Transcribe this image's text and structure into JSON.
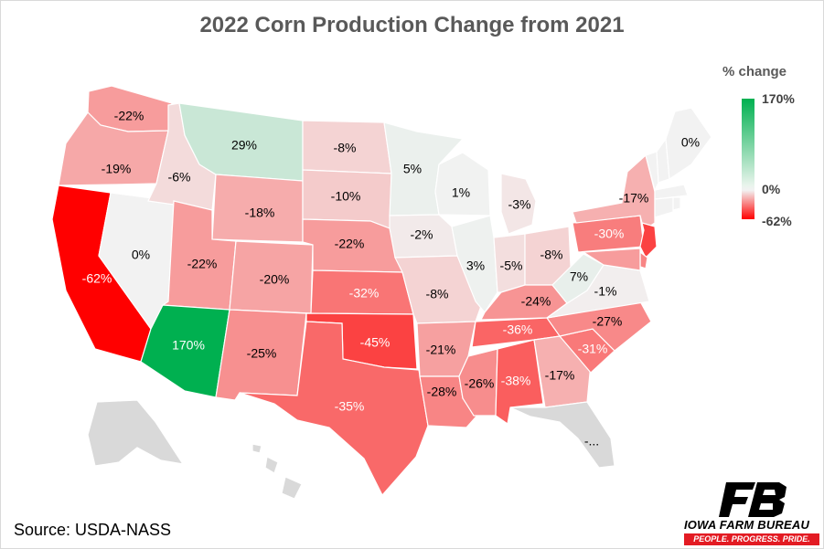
{
  "title": "2022 Corn Production Change from 2021",
  "legend": {
    "title": "% change",
    "max_label": "170%",
    "mid_label": "0%",
    "min_label": "-62%",
    "max_color": "#00b050",
    "mid_color": "#f2f2f2",
    "min_color": "#ff0000"
  },
  "source": "Source: USDA-NASS",
  "logo": {
    "name": "IOWA FARM BUREAU",
    "tagline": "PEOPLE. PROGRESS. PRIDE.",
    "brand_color": "#e31b23"
  },
  "chart_data": {
    "type": "choropleth",
    "value_unit": "% change",
    "scale": {
      "min": -62,
      "mid": 0,
      "max": 170
    },
    "states": [
      {
        "id": "WA",
        "label": "-22%",
        "value": -22
      },
      {
        "id": "OR",
        "label": "-19%",
        "value": -19
      },
      {
        "id": "CA",
        "label": "-62%",
        "value": -62
      },
      {
        "id": "NV",
        "label": "0%",
        "value": 0
      },
      {
        "id": "ID",
        "label": "-6%",
        "value": -6
      },
      {
        "id": "MT",
        "label": "29%",
        "value": 29
      },
      {
        "id": "WY",
        "label": "-18%",
        "value": -18
      },
      {
        "id": "UT",
        "label": "-22%",
        "value": -22
      },
      {
        "id": "AZ",
        "label": "170%",
        "value": 170
      },
      {
        "id": "CO",
        "label": "-20%",
        "value": -20
      },
      {
        "id": "NM",
        "label": "-25%",
        "value": -25
      },
      {
        "id": "ND",
        "label": "-8%",
        "value": -8
      },
      {
        "id": "SD",
        "label": "-10%",
        "value": -10
      },
      {
        "id": "NE",
        "label": "-22%",
        "value": -22
      },
      {
        "id": "KS",
        "label": "-32%",
        "value": -32
      },
      {
        "id": "OK",
        "label": "-45%",
        "value": -45
      },
      {
        "id": "TX",
        "label": "-35%",
        "value": -35
      },
      {
        "id": "MN",
        "label": "5%",
        "value": 5
      },
      {
        "id": "IA",
        "label": "-2%",
        "value": -2
      },
      {
        "id": "MO",
        "label": "-8%",
        "value": -8
      },
      {
        "id": "AR",
        "label": "-21%",
        "value": -21
      },
      {
        "id": "LA",
        "label": "-28%",
        "value": -28
      },
      {
        "id": "WI",
        "label": "1%",
        "value": 1
      },
      {
        "id": "IL",
        "label": "3%",
        "value": 3
      },
      {
        "id": "MS",
        "label": "-26%",
        "value": -26
      },
      {
        "id": "MI",
        "label": "-3%",
        "value": -3
      },
      {
        "id": "IN",
        "label": "-5%",
        "value": -5
      },
      {
        "id": "KY",
        "label": "-24%",
        "value": -24
      },
      {
        "id": "TN",
        "label": "-36%",
        "value": -36
      },
      {
        "id": "AL",
        "label": "-38%",
        "value": -38
      },
      {
        "id": "OH",
        "label": "-8%",
        "value": -8
      },
      {
        "id": "WV",
        "label": "7%",
        "value": 7
      },
      {
        "id": "VA",
        "label": "-1%",
        "value": -1
      },
      {
        "id": "NC",
        "label": "-27%",
        "value": -27
      },
      {
        "id": "SC",
        "label": "-31%",
        "value": -31
      },
      {
        "id": "GA",
        "label": "-17%",
        "value": -17
      },
      {
        "id": "FL",
        "label": "-...",
        "value": null
      },
      {
        "id": "PA",
        "label": "-30%",
        "value": -30
      },
      {
        "id": "NY",
        "label": "-17%",
        "value": -17
      },
      {
        "id": "NJ",
        "label": "",
        "value": -45
      },
      {
        "id": "DE",
        "label": "",
        "value": -28
      },
      {
        "id": "MD",
        "label": "",
        "value": -22
      },
      {
        "id": "VT",
        "label": "",
        "value": 0
      },
      {
        "id": "NH",
        "label": "",
        "value": 0
      },
      {
        "id": "MA",
        "label": "",
        "value": 0
      },
      {
        "id": "CT",
        "label": "",
        "value": 0
      },
      {
        "id": "RI",
        "label": "",
        "value": 0
      },
      {
        "id": "ME",
        "label": "0%",
        "value": 0
      },
      {
        "id": "AK",
        "label": "",
        "value": null
      },
      {
        "id": "HI",
        "label": "",
        "value": null
      }
    ]
  }
}
